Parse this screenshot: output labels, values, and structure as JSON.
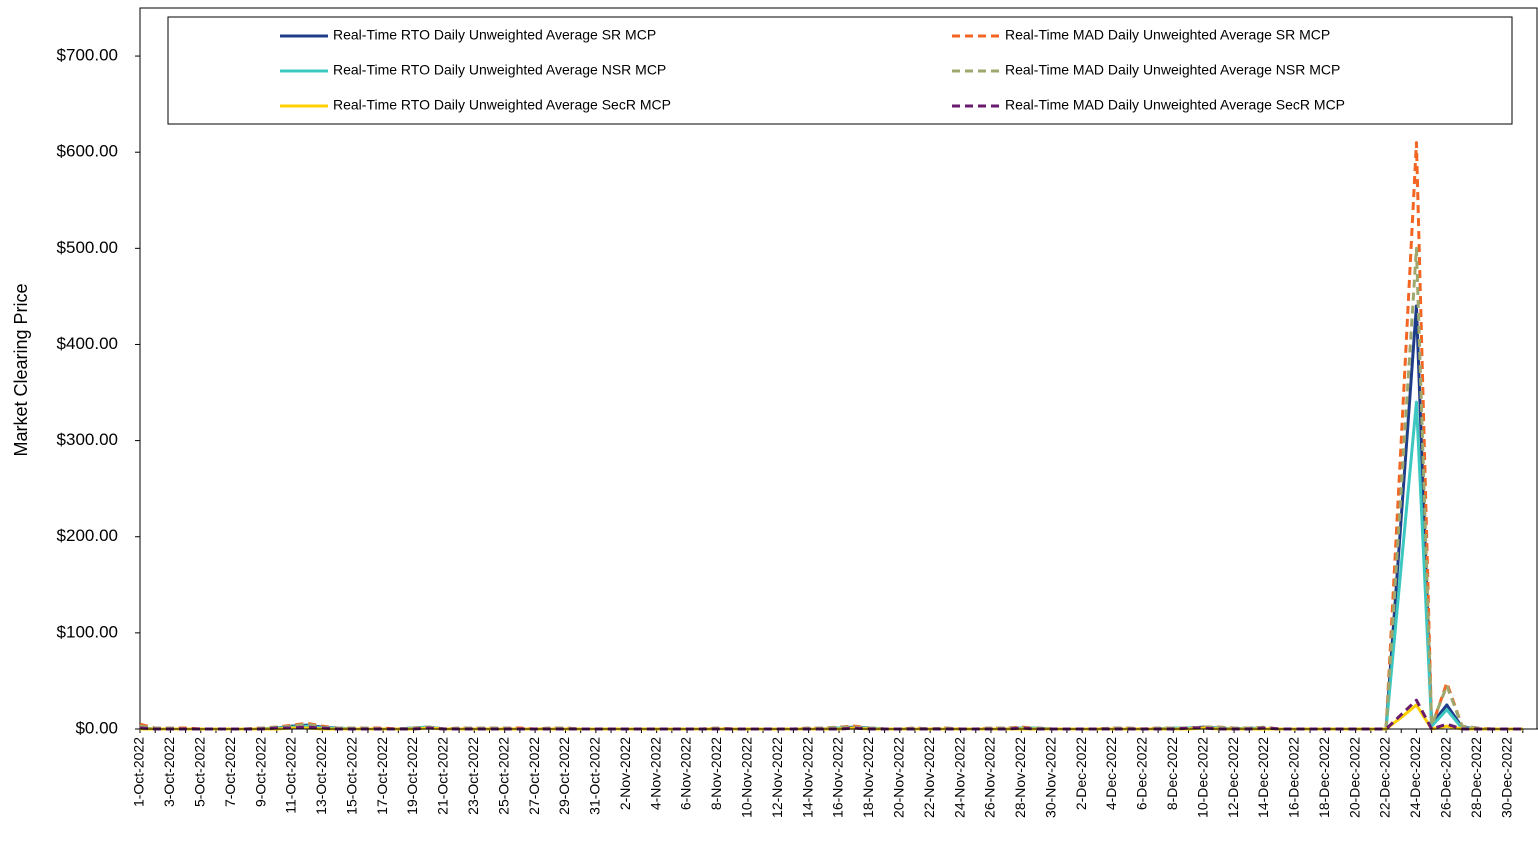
{
  "chart_data": {
    "type": "line",
    "y_label": "Market Clearing Price",
    "categories": [
      "1-Oct-2022",
      null,
      "3-Oct-2022",
      null,
      "5-Oct-2022",
      null,
      "7-Oct-2022",
      null,
      "9-Oct-2022",
      null,
      "11-Oct-2022",
      null,
      "13-Oct-2022",
      null,
      "15-Oct-2022",
      null,
      "17-Oct-2022",
      null,
      "19-Oct-2022",
      null,
      "21-Oct-2022",
      null,
      "23-Oct-2022",
      null,
      "25-Oct-2022",
      null,
      "27-Oct-2022",
      null,
      "29-Oct-2022",
      null,
      "31-Oct-2022",
      null,
      "2-Nov-2022",
      null,
      "4-Nov-2022",
      null,
      "6-Nov-2022",
      null,
      "8-Nov-2022",
      null,
      "10-Nov-2022",
      null,
      "12-Nov-2022",
      null,
      "14-Nov-2022",
      null,
      "16-Nov-2022",
      null,
      "18-Nov-2022",
      null,
      "20-Nov-2022",
      null,
      "22-Nov-2022",
      null,
      "24-Nov-2022",
      null,
      "26-Nov-2022",
      null,
      "28-Nov-2022",
      null,
      "30-Nov-2022",
      null,
      "2-Dec-2022",
      null,
      "4-Dec-2022",
      null,
      "6-Dec-2022",
      null,
      "8-Dec-2022",
      null,
      "10-Dec-2022",
      null,
      "12-Dec-2022",
      null,
      "14-Dec-2022",
      null,
      "16-Dec-2022",
      null,
      "18-Dec-2022",
      null,
      "20-Dec-2022",
      null,
      "22-Dec-2022",
      null,
      "24-Dec-2022",
      null,
      "26-Dec-2022",
      null,
      "28-Dec-2022",
      null,
      "30-Dec-2022",
      null
    ],
    "series": [
      {
        "name": "Real-Time RTO Daily Unweighted Average SR MCP",
        "color": "#1f3c88",
        "dashed": false,
        "values": [
          1,
          0,
          0,
          0,
          0,
          0,
          0,
          0,
          0,
          1,
          3,
          4,
          2,
          1,
          0,
          0,
          0,
          0,
          1,
          2,
          0,
          0,
          0,
          0,
          0,
          0,
          0,
          0,
          0,
          0,
          0,
          0,
          0,
          0,
          0,
          0,
          0,
          0,
          0,
          0,
          0,
          0,
          0,
          0,
          0,
          0,
          1,
          2,
          1,
          0,
          0,
          0,
          0,
          0,
          0,
          0,
          0,
          0,
          1,
          1,
          0,
          0,
          0,
          0,
          0,
          0,
          0,
          0,
          1,
          1,
          2,
          1,
          0,
          1,
          0,
          0,
          0,
          0,
          0,
          0,
          0,
          0,
          0,
          220,
          440,
          5,
          25,
          2,
          0,
          0,
          0,
          0
        ]
      },
      {
        "name": "Real-Time MAD Daily Unweighted Average SR MCP",
        "color": "#f26522",
        "dashed": true,
        "values": [
          5,
          1,
          1,
          1,
          0,
          0,
          0,
          0,
          1,
          2,
          4,
          6,
          3,
          1,
          1,
          1,
          1,
          0,
          1,
          2,
          0,
          1,
          1,
          1,
          1,
          1,
          0,
          1,
          1,
          0,
          0,
          0,
          0,
          0,
          0,
          0,
          0,
          0,
          1,
          0,
          0,
          0,
          0,
          0,
          1,
          1,
          2,
          3,
          1,
          0,
          0,
          1,
          0,
          1,
          0,
          0,
          1,
          1,
          2,
          1,
          0,
          0,
          0,
          0,
          1,
          1,
          0,
          1,
          1,
          1,
          2,
          2,
          1,
          1,
          1,
          0,
          0,
          0,
          0,
          0,
          0,
          0,
          0,
          300,
          610,
          2,
          48,
          3,
          1,
          0,
          0,
          0
        ]
      },
      {
        "name": "Real-Time RTO Daily Unweighted Average NSR MCP",
        "color": "#3cc8c0",
        "dashed": false,
        "values": [
          1,
          0,
          0,
          0,
          0,
          0,
          0,
          0,
          0,
          1,
          2,
          3,
          1,
          1,
          0,
          0,
          0,
          0,
          1,
          2,
          0,
          0,
          0,
          0,
          0,
          0,
          0,
          0,
          0,
          0,
          0,
          0,
          0,
          0,
          0,
          0,
          0,
          0,
          0,
          0,
          0,
          0,
          0,
          0,
          0,
          0,
          1,
          1,
          1,
          0,
          0,
          0,
          0,
          0,
          0,
          0,
          0,
          0,
          1,
          1,
          0,
          0,
          0,
          0,
          0,
          0,
          0,
          0,
          1,
          1,
          1,
          1,
          0,
          1,
          0,
          0,
          0,
          0,
          0,
          0,
          0,
          0,
          0,
          170,
          340,
          3,
          20,
          1,
          0,
          0,
          0,
          0
        ]
      },
      {
        "name": "Real-Time MAD Daily Unweighted Average NSR MCP",
        "color": "#9ea86e",
        "dashed": true,
        "values": [
          3,
          1,
          1,
          0,
          0,
          0,
          0,
          0,
          1,
          2,
          3,
          5,
          2,
          1,
          1,
          1,
          0,
          0,
          1,
          2,
          0,
          1,
          1,
          1,
          1,
          0,
          0,
          1,
          1,
          0,
          0,
          0,
          0,
          0,
          0,
          0,
          0,
          0,
          1,
          0,
          0,
          0,
          0,
          0,
          1,
          1,
          2,
          2,
          1,
          0,
          0,
          1,
          0,
          1,
          0,
          0,
          1,
          1,
          1,
          1,
          0,
          0,
          0,
          0,
          1,
          1,
          0,
          1,
          1,
          1,
          2,
          2,
          1,
          1,
          2,
          0,
          0,
          0,
          0,
          0,
          0,
          0,
          0,
          250,
          500,
          4,
          45,
          3,
          1,
          0,
          0,
          0
        ]
      },
      {
        "name": "Real-Time RTO Daily Unweighted Average SecR MCP",
        "color": "#ffd000",
        "dashed": false,
        "values": [
          0,
          0,
          0,
          0,
          0,
          0,
          0,
          0,
          0,
          0,
          1,
          1,
          0,
          0,
          0,
          0,
          0,
          0,
          0,
          1,
          0,
          0,
          0,
          0,
          0,
          0,
          0,
          0,
          0,
          0,
          0,
          0,
          0,
          0,
          0,
          0,
          0,
          0,
          0,
          0,
          0,
          0,
          0,
          0,
          0,
          0,
          0,
          1,
          0,
          0,
          0,
          0,
          0,
          0,
          0,
          0,
          0,
          0,
          0,
          0,
          0,
          0,
          0,
          0,
          0,
          0,
          0,
          0,
          0,
          0,
          1,
          0,
          0,
          0,
          0,
          0,
          0,
          0,
          0,
          0,
          0,
          0,
          0,
          12,
          25,
          0,
          3,
          0,
          0,
          0,
          0,
          0
        ]
      },
      {
        "name": "Real-Time MAD Daily Unweighted Average SecR MCP",
        "color": "#6a1b6e",
        "dashed": true,
        "values": [
          1,
          0,
          0,
          0,
          0,
          0,
          0,
          0,
          0,
          1,
          1,
          2,
          1,
          0,
          0,
          0,
          0,
          0,
          0,
          1,
          0,
          0,
          0,
          0,
          0,
          0,
          0,
          0,
          0,
          0,
          0,
          0,
          0,
          0,
          0,
          0,
          0,
          0,
          0,
          0,
          0,
          0,
          0,
          0,
          0,
          0,
          0,
          1,
          0,
          0,
          0,
          0,
          0,
          0,
          0,
          0,
          0,
          0,
          1,
          0,
          0,
          0,
          0,
          0,
          0,
          0,
          0,
          0,
          0,
          1,
          1,
          0,
          0,
          0,
          1,
          0,
          0,
          0,
          0,
          0,
          0,
          0,
          0,
          15,
          30,
          0,
          5,
          0,
          0,
          0,
          0,
          0
        ]
      }
    ],
    "ylim": [
      0,
      750
    ],
    "yticks": [
      {
        "value": 0,
        "label": "$0.00"
      },
      {
        "value": 100,
        "label": "$100.00"
      },
      {
        "value": 200,
        "label": "$200.00"
      },
      {
        "value": 300,
        "label": "$300.00"
      },
      {
        "value": 400,
        "label": "$400.00"
      },
      {
        "value": 500,
        "label": "$500.00"
      },
      {
        "value": 600,
        "label": "$600.00"
      },
      {
        "value": 700,
        "label": "$700.00"
      }
    ],
    "grid": false
  }
}
